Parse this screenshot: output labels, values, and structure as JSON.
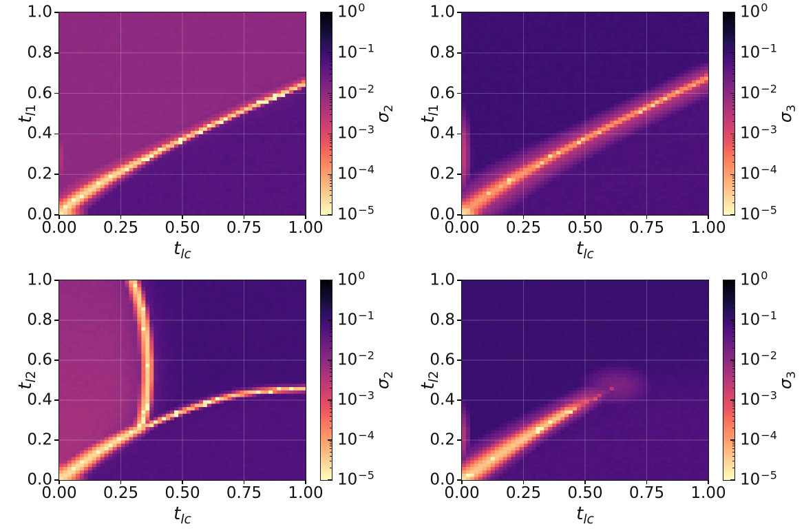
{
  "figure": {
    "background": "#ffffff",
    "rows": 2,
    "cols": 2,
    "description": "2x2 grid of log-scaled singular-value heatmaps over (t_lc, t_l1) and (t_lc, t_l2)"
  },
  "chart_data": {
    "type": "heatmap",
    "mesh": {
      "resolution": 60
    },
    "color_scale": {
      "type": "log",
      "clim": [
        "1e-5",
        "1e0"
      ],
      "mapping": "u = -log10(sigma)/5 mapped through magma colormap (sigma=1 black, sigma=1e-5 cream)"
    },
    "colormap": {
      "name": "magma",
      "stops": [
        [
          0.0,
          "#000004"
        ],
        [
          0.05,
          "#0a0722"
        ],
        [
          0.1,
          "#140e36"
        ],
        [
          0.15,
          "#261258"
        ],
        [
          0.2,
          "#3b0f70"
        ],
        [
          0.25,
          "#51127c"
        ],
        [
          0.3,
          "#641a80"
        ],
        [
          0.35,
          "#782281"
        ],
        [
          0.4,
          "#8c2981"
        ],
        [
          0.45,
          "#a1307e"
        ],
        [
          0.5,
          "#b73779"
        ],
        [
          0.55,
          "#ca3e72"
        ],
        [
          0.6,
          "#de4968"
        ],
        [
          0.65,
          "#ea5661"
        ],
        [
          0.7,
          "#f7705c"
        ],
        [
          0.75,
          "#fb8861"
        ],
        [
          0.8,
          "#fe9f6d"
        ],
        [
          0.85,
          "#feb77e"
        ],
        [
          0.9,
          "#fecf92"
        ],
        [
          0.95,
          "#fde7a9"
        ],
        [
          1.0,
          "#fcfdbf"
        ]
      ]
    },
    "cbar": {
      "mantissa": "10",
      "exponents": [
        "0",
        "−1",
        "−2",
        "−3",
        "−4",
        "−5"
      ],
      "gridline_color": "rgba(255,255,255,0.25)"
    },
    "panels": [
      {
        "id": "top-left",
        "xlabel": {
          "base": "t",
          "subItalic": "lc",
          "subPlain": ""
        },
        "ylabel": {
          "base": "t",
          "subItalic": "l",
          "subPlain": "1"
        },
        "cbar_label": {
          "base": "σ",
          "subItalic": "",
          "subPlain": "2"
        },
        "x_ticks": [
          "0.00",
          "0.25",
          "0.50",
          "0.75",
          "1.00"
        ],
        "y_ticks": [
          "0.0",
          "0.2",
          "0.4",
          "0.6",
          "0.8",
          "1.0"
        ],
        "xlim": [
          0,
          1
        ],
        "ylim": [
          0,
          1
        ],
        "field": {
          "bg": {
            "mode": "two_side",
            "ridge": 0,
            "above_u": 0.405,
            "below_u": 0.26,
            "trans": 0.025
          },
          "ridges": [
            {
              "orient": "x",
              "seed": 11,
              "speckle_d": 0.009,
              "pts": [
                [
                  0,
                  0
                ],
                [
                  0.05,
                  0.059
                ],
                [
                  0.1,
                  0.103
                ],
                [
                  0.2,
                  0.18
                ],
                [
                  0.3,
                  0.248
                ],
                [
                  0.4,
                  0.312
                ],
                [
                  0.5,
                  0.373
                ],
                [
                  0.6,
                  0.432
                ],
                [
                  0.7,
                  0.489
                ],
                [
                  0.8,
                  0.544
                ],
                [
                  0.9,
                  0.597
                ],
                [
                  1.0,
                  0.65
                ]
              ],
              "core": {
                "peak": 0.92,
                "wp": 0.022,
                "wm": 0.016,
                "boost": [
                  0.035,
                  0.3
                ]
              },
              "wash": {
                "peak": 0.56,
                "wp": 0.07,
                "wm": 0.022,
                "boost": [
                  0.07,
                  0.35
                ]
              }
            }
          ],
          "blobs": [
            {
              "cx": 0,
              "cy": 0,
              "rx": 0.11,
              "ry": 0.11,
              "peak": 0.96
            },
            {
              "cx": 0,
              "cy": 0.28,
              "rx": 0.04,
              "ry": 0.22,
              "peak": 0.5
            }
          ]
        }
      },
      {
        "id": "top-right",
        "xlabel": {
          "base": "t",
          "subItalic": "lc",
          "subPlain": ""
        },
        "ylabel": {
          "base": "t",
          "subItalic": "l",
          "subPlain": "1"
        },
        "cbar_label": {
          "base": "σ",
          "subItalic": "",
          "subPlain": "3"
        },
        "x_ticks": [
          "0.00",
          "0.25",
          "0.50",
          "0.75",
          "1.00"
        ],
        "y_ticks": [
          "0.0",
          "0.2",
          "0.4",
          "0.6",
          "0.8",
          "1.0"
        ],
        "xlim": [
          0,
          1
        ],
        "ylim": [
          0,
          1
        ],
        "field": {
          "bg": {
            "mode": "two_side",
            "ridge": 0,
            "above_u": 0.205,
            "below_u": 0.24,
            "trans": 0.05
          },
          "ridges": [
            {
              "orient": "x",
              "seed": 12,
              "speckle_d": 0.008,
              "pts": [
                [
                  0,
                  0
                ],
                [
                  0.05,
                  0.053
                ],
                [
                  0.1,
                  0.096
                ],
                [
                  0.2,
                  0.173
                ],
                [
                  0.3,
                  0.244
                ],
                [
                  0.4,
                  0.312
                ],
                [
                  0.5,
                  0.377
                ],
                [
                  0.6,
                  0.441
                ],
                [
                  0.7,
                  0.502
                ],
                [
                  0.8,
                  0.562
                ],
                [
                  0.9,
                  0.622
                ],
                [
                  1.0,
                  0.68
                ]
              ],
              "core": {
                "peak": 0.78,
                "wp": 0.028,
                "wm": 0.028,
                "boost": [
                  0.04,
                  0.3
                ]
              },
              "wash": {
                "peak": 0.5,
                "wp": 0.085,
                "wm": 0.105,
                "boost": [
                  0.05,
                  0.35
                ]
              }
            }
          ],
          "blobs": [
            {
              "cx": 0,
              "cy": 0,
              "rx": 0.1,
              "ry": 0.1,
              "peak": 0.95
            },
            {
              "cx": 0,
              "cy": 0.3,
              "rx": 0.045,
              "ry": 0.26,
              "peak": 0.55
            }
          ]
        }
      },
      {
        "id": "bottom-left",
        "xlabel": {
          "base": "t",
          "subItalic": "lc",
          "subPlain": ""
        },
        "ylabel": {
          "base": "t",
          "subItalic": "l",
          "subPlain": "2"
        },
        "cbar_label": {
          "base": "σ",
          "subItalic": "",
          "subPlain": "2"
        },
        "x_ticks": [
          "0.00",
          "0.25",
          "0.50",
          "0.75",
          "1.00"
        ],
        "y_ticks": [
          "0.0",
          "0.2",
          "0.4",
          "0.6",
          "0.8",
          "1.0"
        ],
        "xlim": [
          0,
          1
        ],
        "ylim": [
          0,
          1
        ],
        "field": {
          "bg": {
            "mode": "three_region",
            "trans": 0.03,
            "pink_u0": 0.47,
            "pink_uy": -0.055,
            "right_u": 0.215,
            "below_u": 0.25,
            "f1_pts": [
              [
                0,
                0
              ],
              [
                0.08,
                0.072
              ],
              [
                0.16,
                0.142
              ],
              [
                0.24,
                0.2
              ],
              [
                0.3,
                0.24
              ],
              [
                0.33,
                0.258
              ],
              [
                0.4,
                0.295
              ],
              [
                0.48,
                0.335
              ],
              [
                0.56,
                0.372
              ],
              [
                0.64,
                0.403
              ],
              [
                0.72,
                0.428
              ],
              [
                0.8,
                0.443
              ],
              [
                0.9,
                0.453
              ],
              [
                1.0,
                0.458
              ]
            ],
            "g_pts": [
              [
                0.33,
                0.258
              ],
              [
                0.345,
                0.32
              ],
              [
                0.356,
                0.4
              ],
              [
                0.362,
                0.5
              ],
              [
                0.362,
                0.6
              ],
              [
                0.356,
                0.7
              ],
              [
                0.347,
                0.78
              ],
              [
                0.335,
                0.86
              ],
              [
                0.32,
                0.93
              ],
              [
                0.302,
                1.0
              ]
            ]
          },
          "ridges": [
            {
              "orient": "x",
              "seed": 21,
              "speckle_d": 0.009,
              "pts": [
                [
                  0,
                  0
                ],
                [
                  0.08,
                  0.072
                ],
                [
                  0.16,
                  0.142
                ],
                [
                  0.24,
                  0.2
                ],
                [
                  0.3,
                  0.24
                ],
                [
                  0.33,
                  0.258
                ]
              ],
              "core": {
                "peak": 0.93,
                "wp": 0.025,
                "wm": 0.018,
                "boost": [
                  0.04,
                  0.3
                ]
              },
              "wash": {
                "peak": 0.52,
                "wp": 0.06,
                "wm": 0.03,
                "boost": [
                  0.06,
                  0.35
                ]
              }
            },
            {
              "orient": "y",
              "seed": 22,
              "speckle_d": 0.009,
              "pts": [
                [
                  0.33,
                  0.258
                ],
                [
                  0.345,
                  0.32
                ],
                [
                  0.356,
                  0.4
                ],
                [
                  0.362,
                  0.5
                ],
                [
                  0.362,
                  0.6
                ],
                [
                  0.356,
                  0.7
                ],
                [
                  0.347,
                  0.78
                ],
                [
                  0.335,
                  0.86
                ],
                [
                  0.32,
                  0.93
                ],
                [
                  0.302,
                  1.0
                ]
              ],
              "core": {
                "peak": 0.9,
                "wp": 0.028,
                "wm": 0.04
              },
              "wash": {
                "peak": 0.45,
                "wp": 0.045,
                "wm": 0.085
              }
            },
            {
              "orient": "x",
              "seed": 23,
              "speckle_d": 0.009,
              "pts": [
                [
                  0.33,
                  0.258
                ],
                [
                  0.4,
                  0.295
                ],
                [
                  0.48,
                  0.335
                ],
                [
                  0.56,
                  0.372
                ],
                [
                  0.64,
                  0.403
                ],
                [
                  0.72,
                  0.428
                ],
                [
                  0.8,
                  0.443
                ],
                [
                  0.9,
                  0.453
                ],
                [
                  1.0,
                  0.458
                ]
              ],
              "core": {
                "peak": 0.88,
                "wp": 0.02,
                "wm": 0.018
              },
              "wash": {
                "peak": 0.42,
                "wp": 0.045,
                "wm": 0.03
              }
            }
          ],
          "blobs": [
            {
              "cx": 0,
              "cy": 0,
              "rx": 0.11,
              "ry": 0.11,
              "peak": 0.96
            }
          ]
        }
      },
      {
        "id": "bottom-right",
        "xlabel": {
          "base": "t",
          "subItalic": "lc",
          "subPlain": ""
        },
        "ylabel": {
          "base": "t",
          "subItalic": "l",
          "subPlain": "2"
        },
        "cbar_label": {
          "base": "σ",
          "subItalic": "",
          "subPlain": "3"
        },
        "x_ticks": [
          "0.00",
          "0.25",
          "0.50",
          "0.75",
          "1.00"
        ],
        "y_ticks": [
          "0.0",
          "0.2",
          "0.4",
          "0.6",
          "0.8",
          "1.0"
        ],
        "xlim": [
          0,
          1
        ],
        "ylim": [
          0,
          1
        ],
        "field": {
          "bg": {
            "mode": "two_side",
            "ridge": 0,
            "above_u": 0.195,
            "below_u": 0.245,
            "trans": 0.06
          },
          "ridges": [
            {
              "orient": "x",
              "seed": 31,
              "speckle_d": 0.008,
              "pts": [
                [
                  0,
                  0
                ],
                [
                  0.1,
                  0.083
                ],
                [
                  0.2,
                  0.165
                ],
                [
                  0.3,
                  0.245
                ],
                [
                  0.4,
                  0.32
                ],
                [
                  0.5,
                  0.39
                ],
                [
                  0.6,
                  0.45
                ],
                [
                  0.7,
                  0.5
                ],
                [
                  0.85,
                  0.52
                ],
                [
                  1.0,
                  0.53
                ]
              ],
              "core": {
                "peak": 0.88,
                "wp": 0.04,
                "wm": 0.028,
                "boost": [
                  0.04,
                  0.3
                ],
                "fade": [
                  0.42,
                  5
                ]
              },
              "wash": {
                "peak": 0.5,
                "wp": 0.085,
                "wm": 0.065,
                "boost": [
                  0.05,
                  0.3
                ],
                "fade": [
                  0.5,
                  4
                ]
              }
            }
          ],
          "blobs": [
            {
              "cx": 0,
              "cy": 0,
              "rx": 0.1,
              "ry": 0.1,
              "peak": 0.95
            },
            {
              "cx": 0,
              "cy": 0.22,
              "rx": 0.04,
              "ry": 0.2,
              "peak": 0.5
            },
            {
              "cx": 0.63,
              "cy": 0.47,
              "rx": 0.21,
              "ry": 0.15,
              "peak": 0.36
            }
          ]
        }
      }
    ]
  }
}
